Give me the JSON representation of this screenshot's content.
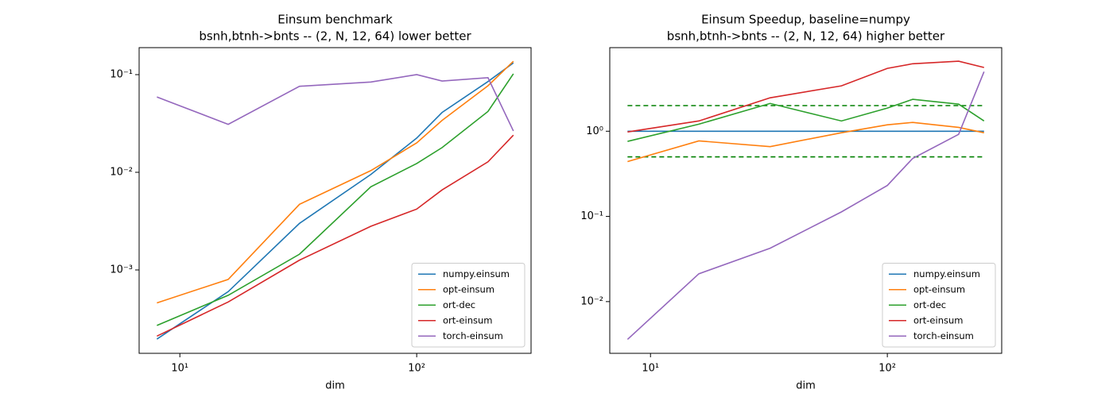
{
  "chart_data": [
    {
      "type": "line",
      "title": "Einsum benchmark",
      "subtitle": "bsnh,btnh->bnts -- (2, N, 12, 64) lower better",
      "x_label": "dim",
      "xscale": "log",
      "yscale": "log",
      "legend": "lower right",
      "x": [
        8,
        16,
        32,
        64,
        100,
        128,
        200,
        256
      ],
      "xlim": [
        6.73,
        304
      ],
      "ylim": [
        0.00014,
        0.189
      ],
      "xticks": [
        {
          "value": 10,
          "label": "10¹"
        },
        {
          "value": 100,
          "label": "10²"
        }
      ],
      "yticks": [
        {
          "value": 0.001,
          "label": "10⁻³"
        },
        {
          "value": 0.01,
          "label": "10⁻²"
        },
        {
          "value": 0.1,
          "label": "10⁻¹"
        }
      ],
      "series": [
        {
          "name": "numpy.einsum",
          "color": "#1f77b4",
          "values": [
            0.000196,
            0.0006,
            0.003,
            0.0095,
            0.0224,
            0.041,
            0.085,
            0.132
          ]
        },
        {
          "name": "opt-einsum",
          "color": "#ff7f0e",
          "values": [
            0.00046,
            0.0008,
            0.0047,
            0.0104,
            0.02,
            0.034,
            0.077,
            0.137
          ]
        },
        {
          "name": "ort-dec",
          "color": "#2ca02c",
          "values": [
            0.00027,
            0.00055,
            0.00145,
            0.0071,
            0.0123,
            0.0179,
            0.042,
            0.102
          ]
        },
        {
          "name": "ort-einsum",
          "color": "#d62728",
          "values": [
            0.00021,
            0.00047,
            0.00126,
            0.0028,
            0.0042,
            0.0066,
            0.0128,
            0.024
          ]
        },
        {
          "name": "torch-einsum",
          "color": "#9467bd",
          "values": [
            0.059,
            0.031,
            0.076,
            0.084,
            0.1,
            0.086,
            0.093,
            0.0265
          ]
        }
      ]
    },
    {
      "type": "line",
      "title": "Einsum Speedup, baseline=numpy",
      "subtitle": "bsnh,btnh->bnts -- (2, N, 12, 64) higher better",
      "x_label": "dim",
      "xscale": "log",
      "yscale": "log",
      "legend": "lower right",
      "x": [
        8,
        16,
        32,
        64,
        100,
        128,
        200,
        256
      ],
      "xlim": [
        6.73,
        304
      ],
      "ylim": [
        0.00247,
        9.58
      ],
      "xticks": [
        {
          "value": 10,
          "label": "10¹"
        },
        {
          "value": 100,
          "label": "10²"
        }
      ],
      "yticks": [
        {
          "value": 0.01,
          "label": "10⁻²"
        },
        {
          "value": 0.1,
          "label": "10⁻¹"
        },
        {
          "value": 1,
          "label": "10⁰"
        }
      ],
      "reference_lines": [
        {
          "value": 2,
          "color": "#008000"
        },
        {
          "value": 0.5,
          "color": "#008000"
        }
      ],
      "series": [
        {
          "name": "numpy.einsum",
          "color": "#1f77b4",
          "values": [
            1,
            1,
            1,
            1,
            1,
            1,
            1,
            1
          ]
        },
        {
          "name": "opt-einsum",
          "color": "#ff7f0e",
          "values": [
            0.44,
            0.77,
            0.66,
            0.96,
            1.19,
            1.27,
            1.11,
            0.96
          ]
        },
        {
          "name": "ort-dec",
          "color": "#2ca02c",
          "values": [
            0.76,
            1.21,
            2.12,
            1.32,
            1.87,
            2.37,
            2.08,
            1.32
          ]
        },
        {
          "name": "ort-einsum",
          "color": "#d62728",
          "values": [
            0.98,
            1.32,
            2.47,
            3.41,
            5.47,
            6.2,
            6.64,
            5.6
          ]
        },
        {
          "name": "torch-einsum",
          "color": "#9467bd",
          "values": [
            0.0036,
            0.0212,
            0.0423,
            0.113,
            0.231,
            0.48,
            0.92,
            5.0
          ]
        }
      ]
    }
  ]
}
